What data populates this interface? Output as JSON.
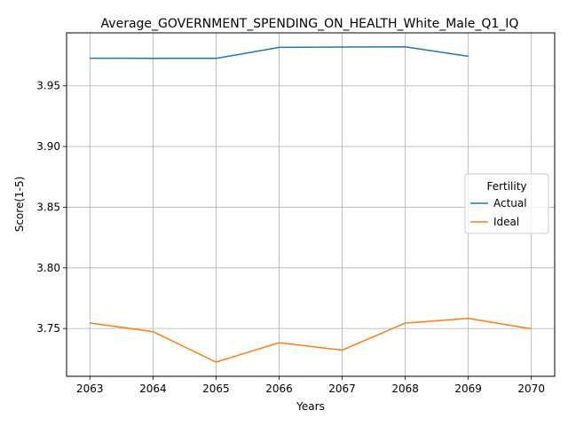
{
  "chart_data": {
    "type": "line",
    "title": "Average_GOVERNMENT_SPENDING_ON_HEALTH_White_Male_Q1_IQ",
    "xlabel": "Years",
    "ylabel": "Score(1-5)",
    "x": [
      2063,
      2064,
      2065,
      2066,
      2067,
      2068,
      2069,
      2070
    ],
    "xticks": [
      "2063",
      "2064",
      "2065",
      "2066",
      "2067",
      "2068",
      "2069",
      "2070"
    ],
    "yticks": [
      "3.75",
      "3.80",
      "3.85",
      "3.90",
      "3.95"
    ],
    "ytick_values": [
      3.75,
      3.8,
      3.85,
      3.9,
      3.95
    ],
    "xlim": [
      2062.63,
      2070.37
    ],
    "ylim": [
      3.7106,
      3.9937
    ],
    "grid": true,
    "legend": {
      "title": "Fertility",
      "placement": "center-right"
    },
    "series": [
      {
        "name": "Actual",
        "color": "#1f77b4",
        "values": [
          3.9728,
          3.9726,
          3.9726,
          3.9817,
          3.982,
          3.9822,
          3.9744,
          null
        ]
      },
      {
        "name": "Ideal",
        "color": "#ff7f0e",
        "values": [
          3.7546,
          3.7474,
          3.7223,
          3.7383,
          3.7322,
          3.7544,
          3.7584,
          3.7497
        ]
      }
    ]
  }
}
